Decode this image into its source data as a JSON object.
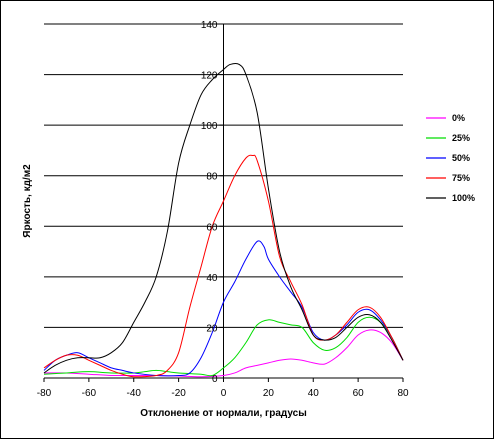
{
  "chart_data": {
    "type": "line",
    "title": "",
    "xlabel": "Отклонение от нормали, градусы",
    "ylabel": "Яркость, кд/м2",
    "xlim": [
      -80,
      80
    ],
    "ylim": [
      0,
      140
    ],
    "x_ticks": [
      "-80",
      "-60",
      "-40",
      "-20",
      "0",
      "20",
      "40",
      "60",
      "80"
    ],
    "y_ticks": [
      "0",
      "20",
      "40",
      "60",
      "80",
      "100",
      "120",
      "140"
    ],
    "grid": "horizontal major",
    "legend_position": "right",
    "series": [
      {
        "name": "0%",
        "color": "#ff00ff",
        "points": [
          [
            -80,
            2
          ],
          [
            -70,
            2
          ],
          [
            -60,
            1.5
          ],
          [
            -50,
            1
          ],
          [
            -40,
            1
          ],
          [
            -30,
            1
          ],
          [
            -20,
            0.8
          ],
          [
            -10,
            0.5
          ],
          [
            0,
            1
          ],
          [
            5,
            2
          ],
          [
            10,
            4
          ],
          [
            15,
            5
          ],
          [
            20,
            6
          ],
          [
            25,
            7
          ],
          [
            30,
            7.5
          ],
          [
            35,
            7
          ],
          [
            40,
            6
          ],
          [
            45,
            5.5
          ],
          [
            50,
            8
          ],
          [
            55,
            12
          ],
          [
            60,
            17
          ],
          [
            65,
            19
          ],
          [
            70,
            18
          ],
          [
            75,
            14
          ],
          [
            80,
            7
          ]
        ]
      },
      {
        "name": "25%",
        "color": "#00dd00",
        "points": [
          [
            -80,
            1.5
          ],
          [
            -70,
            2
          ],
          [
            -60,
            2.5
          ],
          [
            -50,
            2
          ],
          [
            -40,
            2
          ],
          [
            -35,
            2.5
          ],
          [
            -30,
            3
          ],
          [
            -25,
            2.5
          ],
          [
            -20,
            2
          ],
          [
            -10,
            1.5
          ],
          [
            -5,
            1
          ],
          [
            0,
            4
          ],
          [
            5,
            8
          ],
          [
            10,
            14
          ],
          [
            15,
            21
          ],
          [
            20,
            23
          ],
          [
            25,
            22
          ],
          [
            30,
            21
          ],
          [
            35,
            20
          ],
          [
            40,
            14
          ],
          [
            45,
            11
          ],
          [
            50,
            12
          ],
          [
            55,
            16
          ],
          [
            60,
            22
          ],
          [
            65,
            24
          ],
          [
            70,
            22
          ],
          [
            75,
            16
          ],
          [
            80,
            7
          ]
        ]
      },
      {
        "name": "50%",
        "color": "#0000ff",
        "points": [
          [
            -80,
            3
          ],
          [
            -75,
            7
          ],
          [
            -70,
            9
          ],
          [
            -65,
            10
          ],
          [
            -60,
            8
          ],
          [
            -55,
            6
          ],
          [
            -50,
            4
          ],
          [
            -45,
            3
          ],
          [
            -40,
            2
          ],
          [
            -30,
            1
          ],
          [
            -20,
            1
          ],
          [
            -15,
            2
          ],
          [
            -10,
            8
          ],
          [
            -5,
            18
          ],
          [
            0,
            30
          ],
          [
            5,
            38
          ],
          [
            10,
            47
          ],
          [
            15,
            54
          ],
          [
            18,
            52
          ],
          [
            20,
            47
          ],
          [
            25,
            40
          ],
          [
            30,
            34
          ],
          [
            35,
            28
          ],
          [
            40,
            18
          ],
          [
            45,
            15
          ],
          [
            50,
            17
          ],
          [
            55,
            21
          ],
          [
            60,
            26
          ],
          [
            65,
            27
          ],
          [
            70,
            23
          ],
          [
            75,
            16
          ],
          [
            80,
            7
          ]
        ]
      },
      {
        "name": "75%",
        "color": "#ff0000",
        "points": [
          [
            -80,
            4
          ],
          [
            -75,
            7
          ],
          [
            -70,
            9
          ],
          [
            -65,
            9
          ],
          [
            -60,
            7
          ],
          [
            -55,
            5
          ],
          [
            -50,
            3
          ],
          [
            -45,
            1.5
          ],
          [
            -40,
            0.5
          ],
          [
            -30,
            1
          ],
          [
            -25,
            3
          ],
          [
            -20,
            10
          ],
          [
            -15,
            28
          ],
          [
            -10,
            44
          ],
          [
            -5,
            60
          ],
          [
            0,
            70
          ],
          [
            5,
            80
          ],
          [
            10,
            87
          ],
          [
            13,
            88
          ],
          [
            15,
            86
          ],
          [
            20,
            70
          ],
          [
            25,
            48
          ],
          [
            30,
            38
          ],
          [
            35,
            29
          ],
          [
            40,
            17
          ],
          [
            45,
            15
          ],
          [
            50,
            17
          ],
          [
            55,
            22
          ],
          [
            60,
            27
          ],
          [
            65,
            28
          ],
          [
            70,
            24
          ],
          [
            75,
            16
          ],
          [
            80,
            7
          ]
        ]
      },
      {
        "name": "100%",
        "color": "#000000",
        "points": [
          [
            -80,
            2
          ],
          [
            -75,
            5
          ],
          [
            -70,
            7
          ],
          [
            -65,
            8
          ],
          [
            -60,
            8
          ],
          [
            -55,
            8
          ],
          [
            -50,
            10
          ],
          [
            -45,
            14
          ],
          [
            -40,
            22
          ],
          [
            -35,
            30
          ],
          [
            -30,
            40
          ],
          [
            -25,
            58
          ],
          [
            -20,
            85
          ],
          [
            -15,
            100
          ],
          [
            -10,
            112
          ],
          [
            -5,
            118
          ],
          [
            0,
            122
          ],
          [
            3,
            124
          ],
          [
            7,
            124
          ],
          [
            10,
            120
          ],
          [
            15,
            105
          ],
          [
            20,
            75
          ],
          [
            25,
            50
          ],
          [
            30,
            36
          ],
          [
            35,
            27
          ],
          [
            40,
            17
          ],
          [
            45,
            15
          ],
          [
            50,
            16
          ],
          [
            55,
            20
          ],
          [
            60,
            24
          ],
          [
            65,
            25
          ],
          [
            70,
            22
          ],
          [
            75,
            15
          ],
          [
            80,
            7
          ]
        ]
      }
    ]
  }
}
